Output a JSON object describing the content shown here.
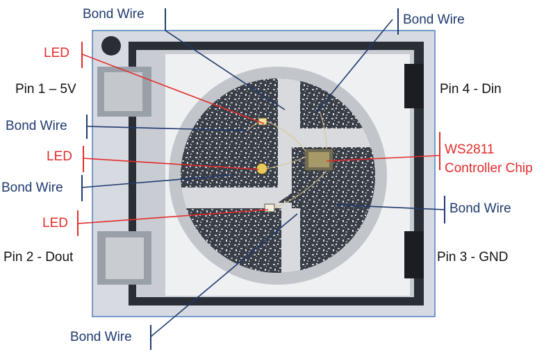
{
  "labels": {
    "bond_wire_top_left": "Bond Wire",
    "bond_wire_top_right": "Bond Wire",
    "led_top": "LED",
    "pin1": "Pin 1 – 5V",
    "pin4": "Pin 4 - Din",
    "bond_wire_left_upper": "Bond Wire",
    "ws_chip_line1": "WS2811",
    "ws_chip_line2": "Controller Chip",
    "led_middle": "LED",
    "bond_wire_left_lower": "Bond Wire",
    "bond_wire_right": "Bond Wire",
    "led_bottom": "LED",
    "pin2": "Pin 2 - Dout",
    "pin3": "Pin 3 - GND",
    "bond_wire_bottom": "Bond Wire"
  },
  "colors": {
    "bond_wire": "#1f3a6e",
    "led": "#e32b2b",
    "pin": "#111111",
    "photo_border": "#4a7fc0"
  }
}
